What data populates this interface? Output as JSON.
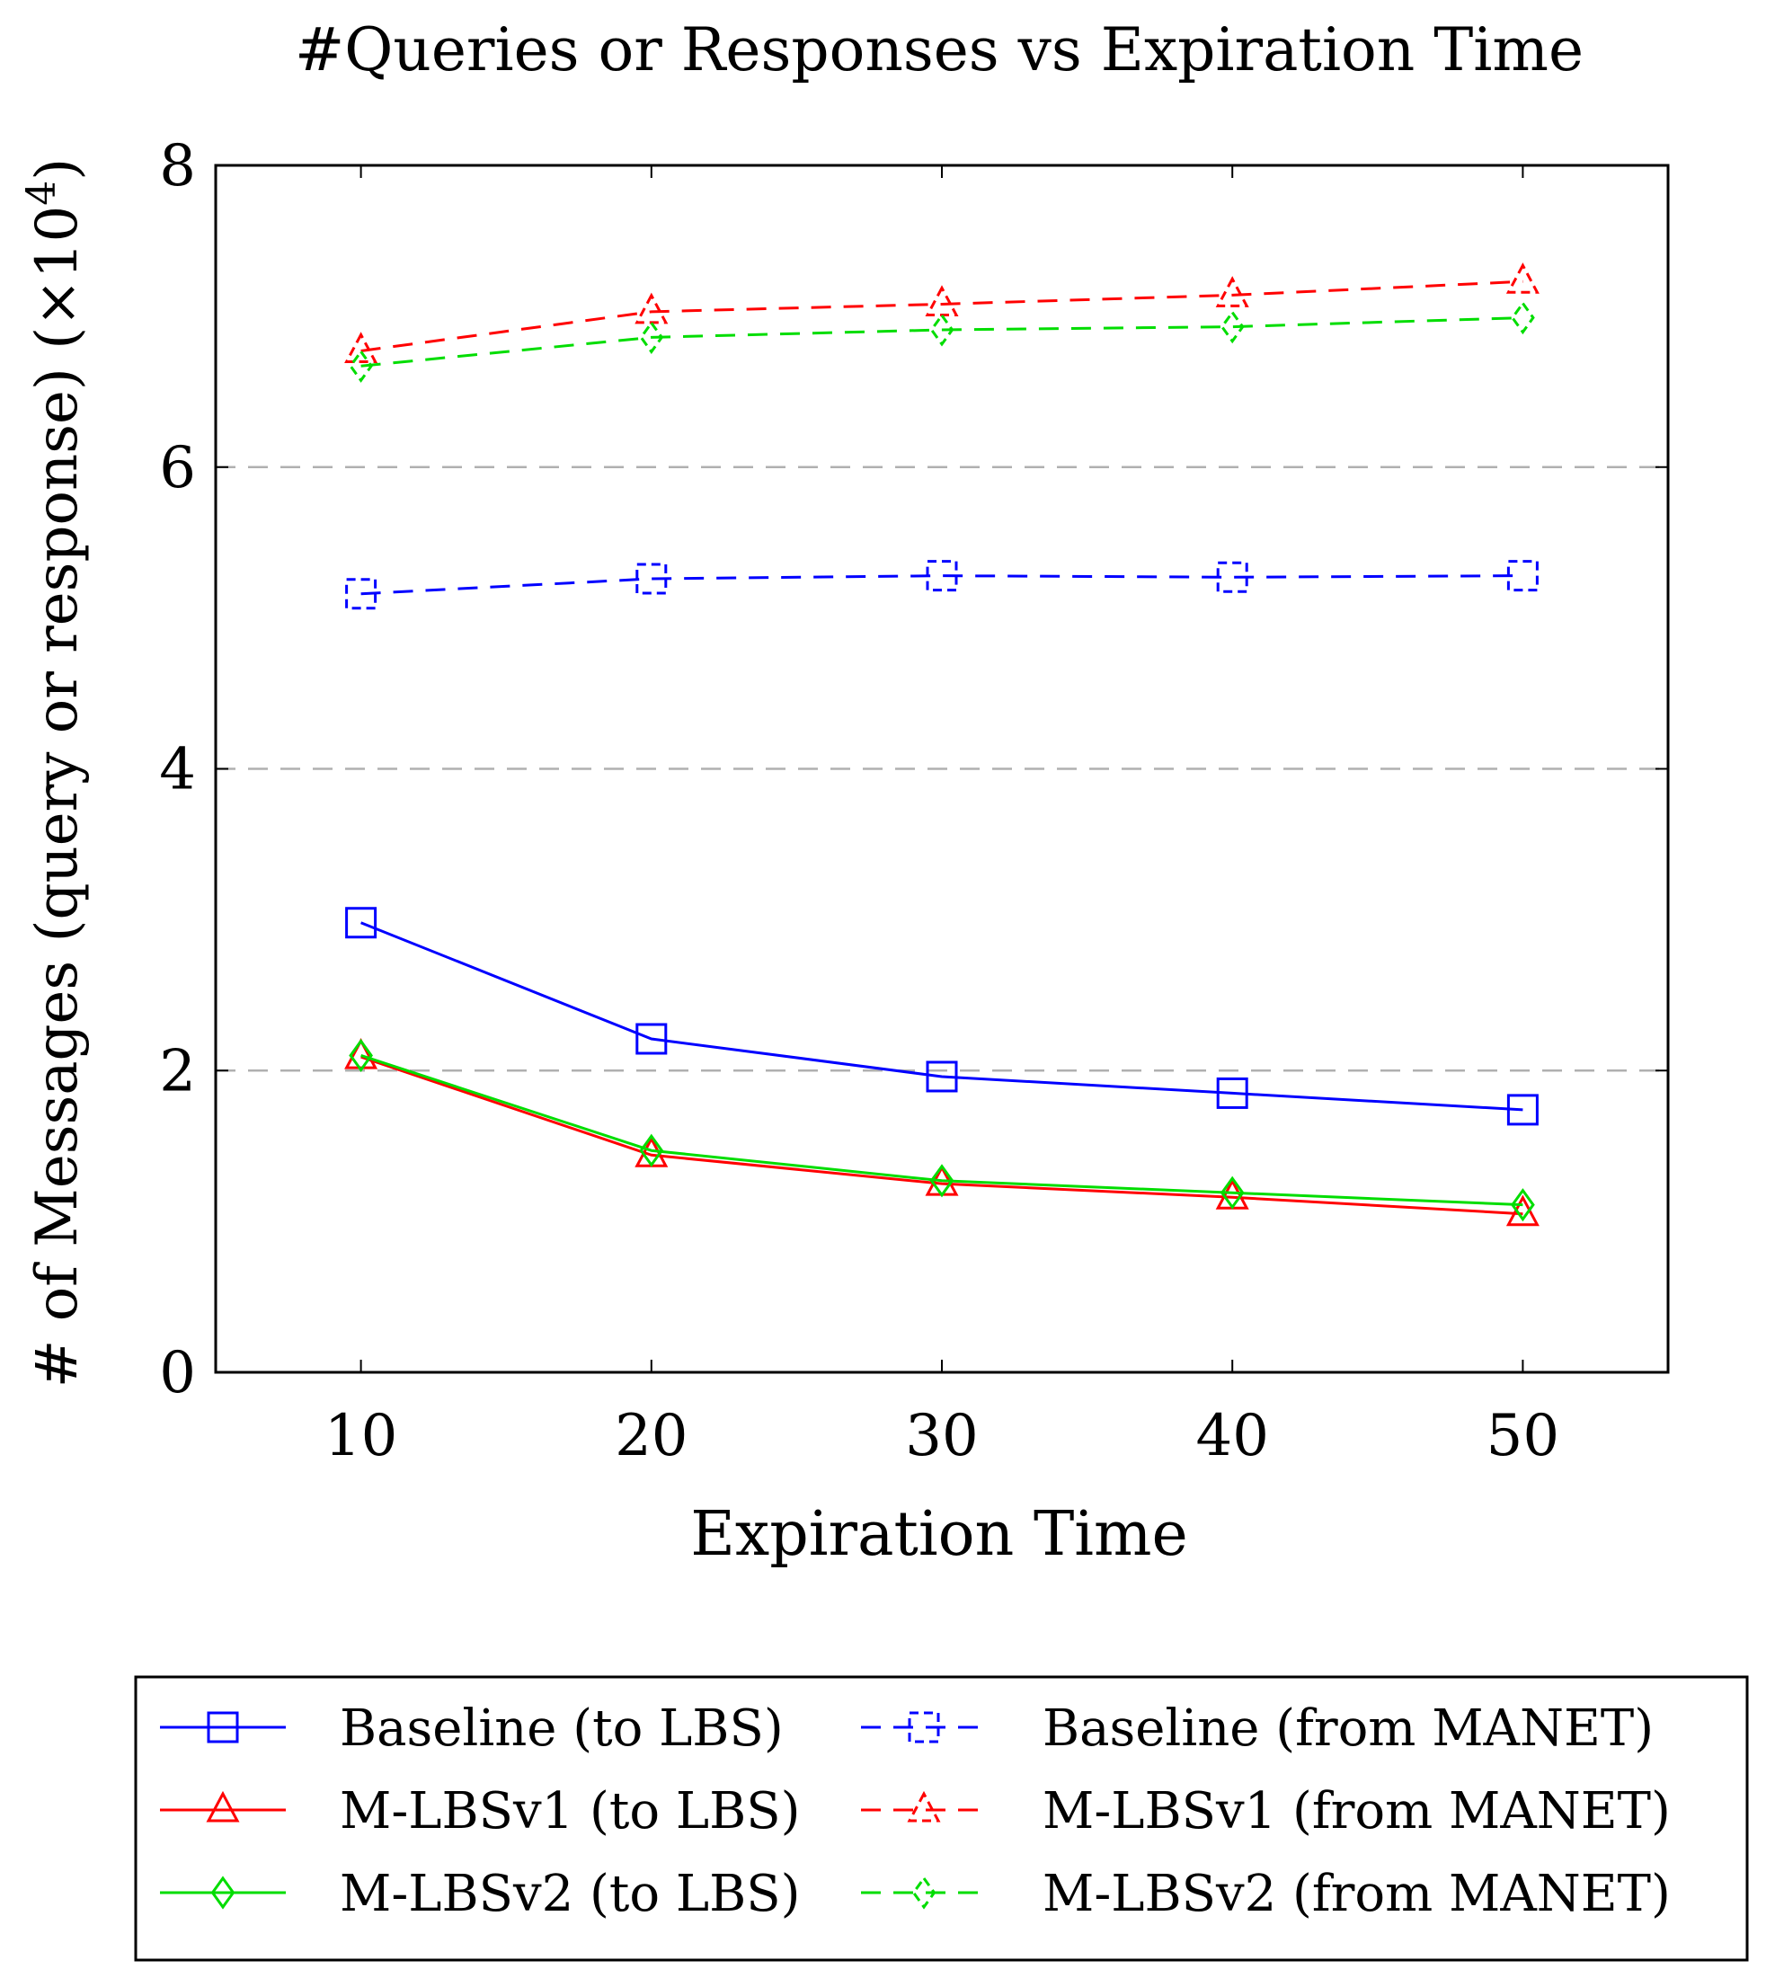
{
  "chart_data": {
    "type": "line",
    "title": "#Queries or Responses vs Expiration Time",
    "xlabel": "Expiration Time",
    "ylabel": "# of Messages (query or response) (×10",
    "ylabel_exponent": "4",
    "ylabel_suffix": ")",
    "x": [
      10,
      20,
      30,
      40,
      50
    ],
    "xlim": [
      5,
      55
    ],
    "ylim": [
      0,
      8
    ],
    "xticks": [
      "10",
      "20",
      "30",
      "40",
      "50"
    ],
    "yticks": [
      "0",
      "2",
      "4",
      "6",
      "8"
    ],
    "grid": "horizontal-dashed",
    "legend_position": "below",
    "series": [
      {
        "name": "Baseline (to LBS)",
        "color": "#0000ff",
        "dashed": false,
        "marker": "square",
        "values": [
          2.98,
          2.21,
          1.96,
          1.85,
          1.74
        ]
      },
      {
        "name": "Baseline (from MANET)",
        "color": "#0000ff",
        "dashed": true,
        "marker": "square",
        "values": [
          5.16,
          5.26,
          5.28,
          5.27,
          5.28
        ]
      },
      {
        "name": "M-LBSv1 (to LBS)",
        "color": "#ff0000",
        "dashed": false,
        "marker": "triangle",
        "values": [
          2.09,
          1.44,
          1.25,
          1.16,
          1.05
        ]
      },
      {
        "name": "M-LBSv1 (from MANET)",
        "color": "#ff0000",
        "dashed": true,
        "marker": "triangle",
        "values": [
          6.77,
          7.03,
          7.08,
          7.14,
          7.23
        ]
      },
      {
        "name": "M-LBSv2 (to LBS)",
        "color": "#00dd00",
        "dashed": false,
        "marker": "diamond",
        "values": [
          2.1,
          1.47,
          1.27,
          1.19,
          1.11
        ]
      },
      {
        "name": "M-LBSv2 (from MANET)",
        "color": "#00dd00",
        "dashed": true,
        "marker": "diamond",
        "values": [
          6.67,
          6.86,
          6.91,
          6.93,
          6.99
        ]
      }
    ],
    "legend_order": [
      0,
      1,
      2,
      3,
      4,
      5
    ]
  }
}
